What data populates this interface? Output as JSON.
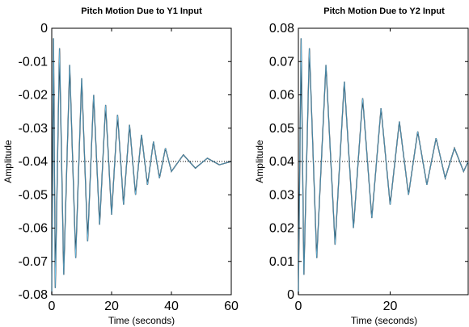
{
  "chart_data": [
    {
      "type": "line",
      "title": "Pitch Motion Due to Y1 Input",
      "xlabel": "Time (seconds)",
      "ylabel": "Amplitude",
      "xlim": [
        0,
        60
      ],
      "ylim": [
        -0.08,
        0
      ],
      "xticks": [
        "0",
        "20",
        "40",
        "60"
      ],
      "yticks": [
        "0",
        "-0.01",
        "-0.02",
        "-0.03",
        "-0.04",
        "-0.05",
        "-0.06",
        "-0.07",
        "-0.08"
      ],
      "steady_state": -0.04,
      "series": [
        {
          "samples": [
            [
              0,
              -0.08
            ],
            [
              0.6,
              -0.003
            ],
            [
              1.2,
              -0.078
            ],
            [
              2.6,
              -0.006
            ],
            [
              4,
              -0.074
            ],
            [
              6,
              -0.011
            ],
            [
              8,
              -0.069
            ],
            [
              10,
              -0.015
            ],
            [
              12,
              -0.064
            ],
            [
              14,
              -0.02
            ],
            [
              16,
              -0.059
            ],
            [
              18,
              -0.023
            ],
            [
              20,
              -0.056
            ],
            [
              22,
              -0.026
            ],
            [
              24,
              -0.053
            ],
            [
              26,
              -0.029
            ],
            [
              28,
              -0.05
            ],
            [
              30,
              -0.032
            ],
            [
              32,
              -0.047
            ],
            [
              34,
              -0.034
            ],
            [
              36,
              -0.045
            ],
            [
              38,
              -0.036
            ],
            [
              40,
              -0.043
            ],
            [
              44,
              -0.038
            ],
            [
              48,
              -0.042
            ],
            [
              52,
              -0.039
            ],
            [
              56,
              -0.041
            ],
            [
              60,
              -0.04
            ]
          ]
        }
      ]
    },
    {
      "type": "line",
      "title": "Pitch Motion Due to Y2 Input",
      "xlabel": "Time (seconds)",
      "ylabel": "Amplitude",
      "xlim": [
        0,
        37
      ],
      "ylim": [
        0,
        0.08
      ],
      "xticks": [
        "0",
        "20"
      ],
      "yticks": [
        "0.08",
        "0.07",
        "0.06",
        "0.05",
        "0.04",
        "0.03",
        "0.02",
        "0.01",
        "0"
      ],
      "steady_state": 0.04,
      "series": [
        {
          "samples": [
            [
              0,
              0.0
            ],
            [
              0.6,
              0.077
            ],
            [
              1.2,
              0.006
            ],
            [
              2.4,
              0.074
            ],
            [
              4,
              0.011
            ],
            [
              6,
              0.069
            ],
            [
              8,
              0.015
            ],
            [
              10,
              0.064
            ],
            [
              12,
              0.02
            ],
            [
              14,
              0.059
            ],
            [
              16,
              0.023
            ],
            [
              18,
              0.056
            ],
            [
              20,
              0.027
            ],
            [
              22,
              0.052
            ],
            [
              24,
              0.03
            ],
            [
              26,
              0.049
            ],
            [
              28,
              0.033
            ],
            [
              30,
              0.047
            ],
            [
              32,
              0.035
            ],
            [
              34,
              0.044
            ],
            [
              36,
              0.037
            ],
            [
              37,
              0.04
            ]
          ]
        }
      ]
    }
  ]
}
